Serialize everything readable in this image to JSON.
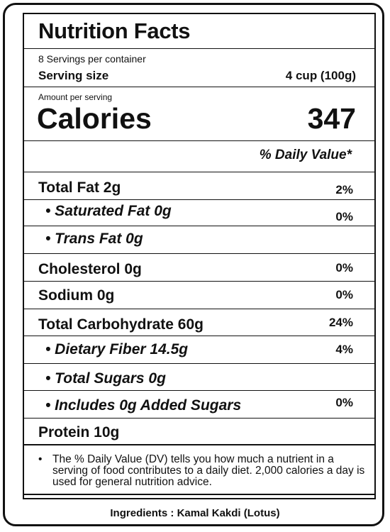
{
  "label": {
    "title": "Nutrition Facts",
    "servings_per_container": "8 Servings per container",
    "serving_size_label": "Serving size",
    "serving_size_value": "4 cup (100g)",
    "amount_per_serving": "Amount per serving",
    "calories_label": "Calories",
    "calories_value": "347",
    "daily_value_header": "% Daily Value*",
    "nutrients": [
      {
        "name": "Total Fat 2g",
        "dv": "2%"
      },
      {
        "name": "• Saturated Fat 0g",
        "dv": "0%"
      },
      {
        "name": "• Trans Fat 0g",
        "dv": ""
      },
      {
        "name": "Cholesterol 0g",
        "dv": "0%"
      },
      {
        "name": "Sodium 0g",
        "dv": "0%"
      },
      {
        "name": "Total Carbohydrate 60g",
        "dv": "24%"
      },
      {
        "name": "• Dietary Fiber 14.5g",
        "dv": "4%"
      },
      {
        "name": "• Total Sugars 0g",
        "dv": ""
      },
      {
        "name": "• Includes 0g Added Sugars",
        "dv": "0%"
      },
      {
        "name": "Protein 10g",
        "dv": ""
      }
    ],
    "footnote_bullet": "•",
    "footnote": "The % Daily Value (DV) tells you how much a nutrient in a serving of food contributes to a daily diet. 2,000 calories a day is used for general nutrition advice.",
    "ingredients": "Ingredients : Kamal Kakdi (Lotus)"
  }
}
